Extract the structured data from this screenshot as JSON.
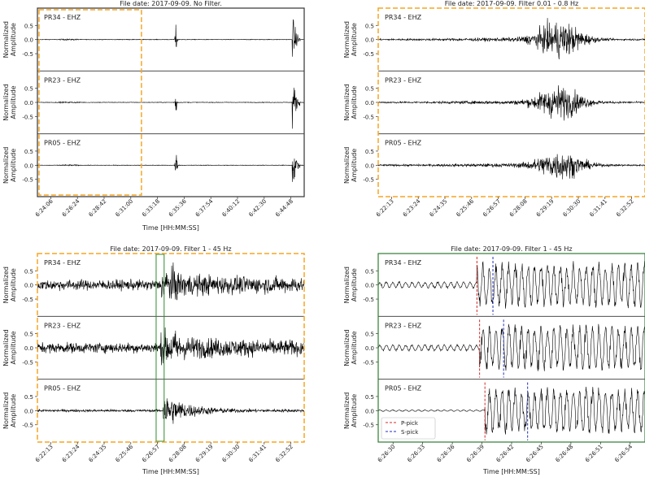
{
  "chart_data": [
    {
      "type": "line",
      "title": "File date: 2017-09-09. No Filter.",
      "xlabel": "Time [HH:MM:SS]",
      "ylabel": "Normalized Amplitude",
      "ylim": [
        -1,
        1
      ],
      "yticks": [
        "0.5",
        "0.0",
        "-0.5"
      ],
      "xticks": [
        "6:24:06",
        "6:26:24",
        "6:28:42",
        "6:31:00",
        "6:33:18",
        "6:35:36",
        "6:37:54",
        "6:40:12",
        "6:42:30",
        "6:44:48"
      ],
      "traces": [
        "PR34 - EHZ",
        "PR23 - EHZ",
        "PR05 - EHZ"
      ],
      "zoom_box": {
        "from": "6:24:06",
        "to": "6:33:18",
        "color": "#f5a623"
      },
      "events_fraction": [
        0.52,
        0.97
      ],
      "border_color": "#333333"
    },
    {
      "type": "line",
      "title": "File date: 2017-09-09.  Filter 0.01 - 0.8 Hz",
      "xlabel": "",
      "ylabel": "Normalized Amplitude",
      "ylim": [
        -1,
        1
      ],
      "yticks": [
        "0.5",
        "0.0",
        "-0.5"
      ],
      "xticks": [
        "6:22:13",
        "6:23:24",
        "6:24:35",
        "6:25:46",
        "6:26:57",
        "6:28:08",
        "6:29:19",
        "6:30:30",
        "6:31:41",
        "6:32:52"
      ],
      "traces": [
        "PR34 - EHZ",
        "PR23 - EHZ",
        "PR05 - EHZ"
      ],
      "border_color": "#f5a623"
    },
    {
      "type": "line",
      "title": "File date: 2017-09-09. Filter 1 - 45 Hz",
      "xlabel": "Time [HH:MM:SS]",
      "ylabel": "Normalized Amplitude",
      "ylim": [
        -1,
        1
      ],
      "yticks": [
        "0.5",
        "0.0",
        "-0.5"
      ],
      "xticks": [
        "6:22:13",
        "6:23:24",
        "6:24:35",
        "6:25:46",
        "6:26:57",
        "6:28:08",
        "6:29:19",
        "6:30:30",
        "6:31:41",
        "6:32:52"
      ],
      "traces": [
        "PR34 - EHZ",
        "PR23 - EHZ",
        "PR05 - EHZ"
      ],
      "zoom_box": {
        "from": "6:26:30",
        "to": "6:26:57",
        "color": "#2e8b2e"
      },
      "border_color": "#f5a623"
    },
    {
      "type": "line",
      "title": "File date: 2017-09-09. Filter 1 - 45 Hz",
      "xlabel": "Time [HH:MM:SS]",
      "ylabel": "Normalized Amplitude",
      "ylim": [
        -1,
        1
      ],
      "yticks": [
        "0.5",
        "0.0",
        "-0.5"
      ],
      "xticks": [
        "6:26:30",
        "6:26:33",
        "6:26:36",
        "6:26:39",
        "6:26:42",
        "6:26:45",
        "6:26:48",
        "6:26:51",
        "6:26:54"
      ],
      "traces": [
        "PR34 - EHZ",
        "PR23 - EHZ",
        "PR05 - EHZ"
      ],
      "picks": [
        {
          "p": 0.37,
          "s": 0.43
        },
        {
          "p": 0.38,
          "s": 0.47
        },
        {
          "p": 0.4,
          "s": 0.56
        }
      ],
      "legend": {
        "placement": "lower-left",
        "entries": [
          {
            "label": "P-pick",
            "color": "#d62728"
          },
          {
            "label": "S-pick",
            "color": "#1f2fbf"
          }
        ]
      },
      "border_color": "#2e7d32"
    }
  ]
}
